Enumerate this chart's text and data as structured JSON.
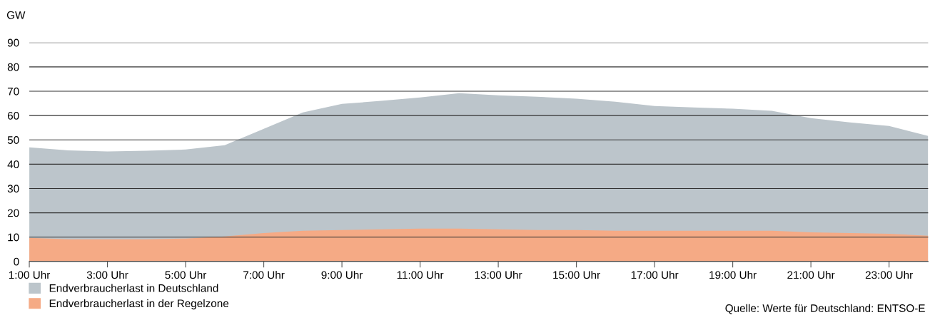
{
  "chart_data": {
    "type": "area",
    "ylabel": "GW",
    "categories": [
      "1:00 Uhr",
      null,
      "3:00 Uhr",
      null,
      "5:00 Uhr",
      null,
      "7:00 Uhr",
      null,
      "9:00 Uhr",
      null,
      "11:00 Uhr",
      null,
      "13:00 Uhr",
      null,
      "15:00 Uhr",
      null,
      "17:00 Uhr",
      null,
      "19:00 Uhr",
      null,
      "21:00 Uhr",
      null,
      "23:00 Uhr",
      null
    ],
    "series": [
      {
        "name": "Endverbraucherlast in Deutschland",
        "color": "#bcc5cb",
        "values": [
          46.9,
          45.7,
          45.2,
          45.5,
          46,
          47.8,
          54.5,
          61.3,
          64.8,
          66,
          67.4,
          69.2,
          68.3,
          67.7,
          66.9,
          65.7,
          63.9,
          63.3,
          62.8,
          61.9,
          58.9,
          57.2,
          55.7,
          51.6
        ]
      },
      {
        "name": "Endverbraucherlast in der Regelzone",
        "color": "#f5aa85",
        "values": [
          9.7,
          9.1,
          9.1,
          9.1,
          9.4,
          10.3,
          11.7,
          12.6,
          12.9,
          13.2,
          13.5,
          13.5,
          13.2,
          12.9,
          12.9,
          12.6,
          12.6,
          12.6,
          12.6,
          12.6,
          12.0,
          11.7,
          11.4,
          10.6
        ]
      }
    ],
    "ylim": [
      0,
      90
    ],
    "yticks": [
      0,
      10,
      20,
      30,
      40,
      50,
      60,
      70,
      80,
      90
    ],
    "grid": "y",
    "legend": "bottom left",
    "annotations": [
      "Quelle: Werte für Deutschland: ENTSO-E"
    ]
  }
}
